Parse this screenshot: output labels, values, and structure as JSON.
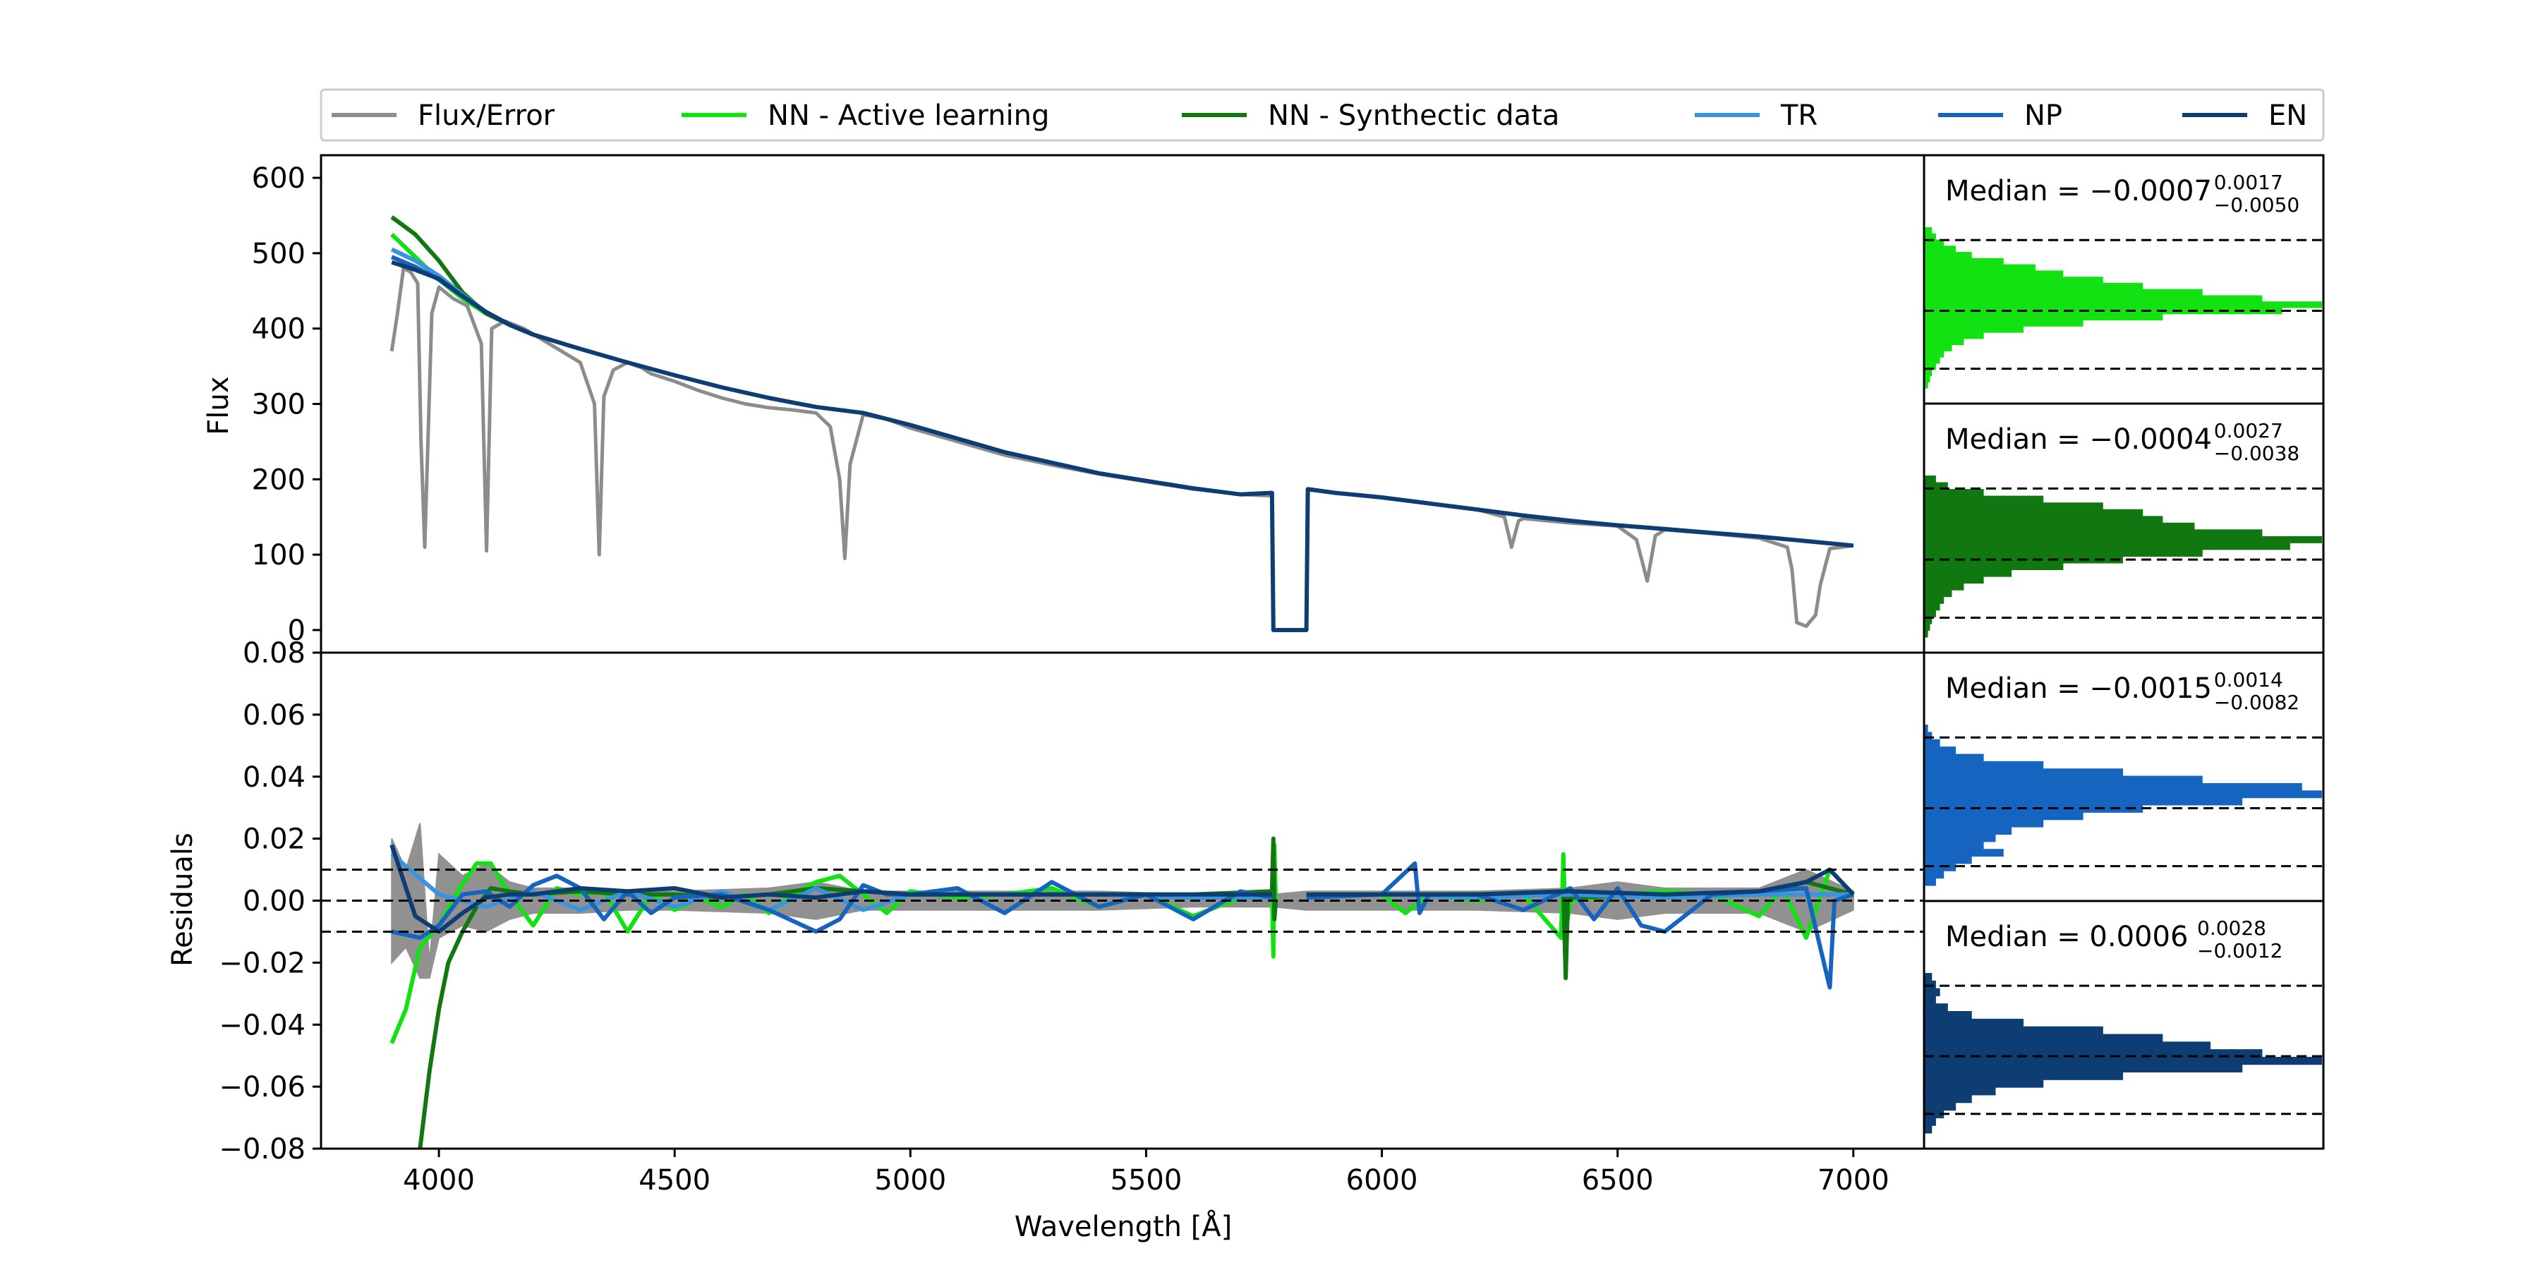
{
  "legend": [
    {
      "label": "Flux/Error",
      "color": "#8c8c8c"
    },
    {
      "label": "NN - Active learning",
      "color": "#12e112"
    },
    {
      "label": "NN - Synthectic data",
      "color": "#117811"
    },
    {
      "label": "TR",
      "color": "#3a93e0"
    },
    {
      "label": "NP",
      "color": "#1565c0"
    },
    {
      "label": "EN",
      "color": "#0d3d73"
    }
  ],
  "chart_data": [
    {
      "type": "line",
      "panel": "flux",
      "ylabel": "Flux",
      "xlim": [
        3750,
        7150
      ],
      "ylim": [
        -30,
        630
      ],
      "yticks": [
        0,
        100,
        200,
        300,
        400,
        500,
        600
      ],
      "series": [
        {
          "name": "Flux/Error",
          "color": "#8c8c8c",
          "x": [
            3900,
            3912,
            3925,
            3940,
            3955,
            3962,
            3970,
            3985,
            4000,
            4030,
            4060,
            4090,
            4101,
            4112,
            4140,
            4180,
            4220,
            4260,
            4300,
            4330,
            4340,
            4350,
            4370,
            4400,
            4430,
            4450,
            4500,
            4550,
            4600,
            4650,
            4700,
            4750,
            4800,
            4830,
            4850,
            4861,
            4872,
            4900,
            4950,
            5000,
            5100,
            5200,
            5300,
            5400,
            5500,
            5600,
            5700,
            5767,
            5770,
            5840,
            5843,
            5900,
            6000,
            6100,
            6200,
            6260,
            6275,
            6290,
            6300,
            6400,
            6500,
            6540,
            6563,
            6580,
            6600,
            6700,
            6800,
            6860,
            6870,
            6880,
            6900,
            6920,
            6930,
            6950,
            7000
          ],
          "y": [
            370,
            420,
            480,
            475,
            460,
            250,
            110,
            420,
            455,
            440,
            430,
            380,
            105,
            400,
            410,
            400,
            385,
            370,
            355,
            300,
            100,
            310,
            345,
            355,
            348,
            340,
            330,
            318,
            308,
            300,
            295,
            292,
            288,
            270,
            200,
            95,
            220,
            286,
            280,
            268,
            250,
            232,
            219,
            207,
            197,
            187,
            180,
            178,
            null,
            null,
            186,
            182,
            176,
            168,
            160,
            150,
            110,
            145,
            148,
            142,
            138,
            120,
            65,
            125,
            133,
            128,
            122,
            110,
            80,
            10,
            5,
            20,
            60,
            108,
            112
          ]
        },
        {
          "name": "NN - Active learning",
          "color": "#12e112",
          "x": [
            3900,
            3950,
            4000,
            4050,
            4100,
            4150,
            4200
          ],
          "y": [
            525,
            495,
            465,
            440,
            420,
            405,
            392
          ]
        },
        {
          "name": "NN - Synthectic data",
          "color": "#117811",
          "x": [
            3900,
            3950,
            4000,
            4050,
            4100,
            4150,
            4200
          ],
          "y": [
            548,
            525,
            490,
            448,
            420,
            405,
            392
          ]
        },
        {
          "name": "TR",
          "color": "#3a93e0",
          "x": [
            3900,
            3950,
            4000,
            4050,
            4100,
            4150,
            4200
          ],
          "y": [
            505,
            490,
            470,
            445,
            422,
            405,
            392
          ]
        },
        {
          "name": "NP",
          "color": "#1565c0",
          "x": [
            3900,
            3950,
            4000,
            4050,
            4100,
            4150,
            4200
          ],
          "y": [
            495,
            482,
            465,
            443,
            422,
            405,
            392
          ]
        },
        {
          "name": "EN",
          "color": "#0d3d73",
          "x": [
            3900,
            3950,
            4000,
            4050,
            4100,
            4150,
            4200,
            4300,
            4400,
            4500,
            4600,
            4700,
            4800,
            4900,
            5000,
            5100,
            5200,
            5300,
            5400,
            5500,
            5600,
            5700,
            5767,
            5770,
            5840,
            5843,
            5900,
            6000,
            6100,
            6200,
            6300,
            6400,
            6500,
            6600,
            6700,
            6800,
            6900,
            7000
          ],
          "y": [
            488,
            478,
            466,
            443,
            422,
            405,
            392,
            373,
            355,
            338,
            322,
            308,
            296,
            288,
            272,
            254,
            236,
            222,
            208,
            198,
            188,
            180,
            182,
            0,
            0,
            187,
            182,
            176,
            168,
            160,
            152,
            145,
            139,
            134,
            129,
            124,
            118,
            112
          ]
        }
      ]
    },
    {
      "type": "line",
      "panel": "residuals",
      "ylabel": "Residuals",
      "xlabel": "Wavelength [Å]",
      "xlim": [
        3750,
        7150
      ],
      "ylim": [
        -0.08,
        0.08
      ],
      "xticks": [
        4000,
        4500,
        5000,
        5500,
        6000,
        6500,
        7000
      ],
      "yticks": [
        -0.08,
        -0.06,
        -0.04,
        -0.02,
        0.0,
        0.02,
        0.04,
        0.06,
        0.08
      ],
      "ytick_labels": [
        "−0.08",
        "−0.06",
        "−0.04",
        "−0.02",
        "0.00",
        "0.02",
        "0.04",
        "0.06",
        "0.08"
      ],
      "reference_lines": [
        -0.01,
        0.0,
        0.01
      ],
      "series": [
        {
          "name": "Flux/Error",
          "color": "#8c8c8c",
          "x": [
            3900,
            3930,
            3960,
            3980,
            4000,
            4050,
            4100,
            4150,
            4200,
            4300,
            4400,
            4500,
            4700,
            4800,
            4900,
            5000,
            5200,
            5400,
            5600,
            5770,
            5840,
            6000,
            6200,
            6400,
            6500,
            6600,
            6800,
            6900,
            7000
          ],
          "y": [
            0.02,
            0.01,
            0.025,
            -0.02,
            0.015,
            0.008,
            0.012,
            0.006,
            0.004,
            0.004,
            0.003,
            0.003,
            0.004,
            0.006,
            0.003,
            0.003,
            0.003,
            0.003,
            0.002,
            0.002,
            0.003,
            0.003,
            0.003,
            0.004,
            0.006,
            0.004,
            0.004,
            0.01,
            0.003
          ],
          "y_lower": [
            -0.02,
            -0.015,
            -0.025,
            -0.025,
            -0.012,
            -0.008,
            -0.01,
            -0.006,
            -0.004,
            -0.004,
            -0.003,
            -0.003,
            -0.004,
            -0.006,
            -0.003,
            -0.003,
            -0.003,
            -0.003,
            -0.002,
            -0.002,
            -0.003,
            -0.003,
            -0.003,
            -0.004,
            -0.006,
            -0.004,
            -0.004,
            -0.01,
            -0.003
          ]
        },
        {
          "name": "NN - Active learning",
          "color": "#12e112",
          "x": [
            3900,
            3930,
            3960,
            4000,
            4040,
            4080,
            4110,
            4150,
            4200,
            4250,
            4300,
            4350,
            4400,
            4450,
            4500,
            4550,
            4600,
            4650,
            4700,
            4750,
            4800,
            4850,
            4900,
            4950,
            5000,
            5100,
            5200,
            5300,
            5400,
            5500,
            5600,
            5700,
            5767,
            5770,
            5772,
            5775,
            5840,
            5900,
            6000,
            6050,
            6100,
            6200,
            6300,
            6380,
            6385,
            6390,
            6400,
            6500,
            6600,
            6700,
            6800,
            6850,
            6900,
            6950,
            7000
          ],
          "y": [
            -0.046,
            -0.035,
            -0.015,
            -0.008,
            0.003,
            0.012,
            0.012,
            0.002,
            -0.008,
            0.004,
            0.002,
            0.003,
            -0.01,
            0.002,
            -0.003,
            0.001,
            -0.002,
            0.002,
            -0.004,
            0.002,
            0.006,
            0.008,
            0.002,
            -0.004,
            0.003,
            0.001,
            0.002,
            0.004,
            -0.002,
            0.002,
            -0.005,
            0.001,
            0.002,
            -0.018,
            0.018,
            0.0,
            null,
            0.002,
            0.002,
            -0.004,
            0.002,
            0.0,
            0.002,
            -0.012,
            0.015,
            -0.01,
            0.0,
            0.002,
            0.003,
            0.002,
            -0.005,
            0.004,
            -0.012,
            0.01,
            0.002
          ]
        },
        {
          "name": "NN - Synthectic data",
          "color": "#117811",
          "x": [
            3960,
            3980,
            4000,
            4020,
            4050,
            4080,
            4110,
            4150,
            4200,
            4300,
            4400,
            4500,
            4600,
            4700,
            4800,
            4900,
            5000,
            5200,
            5400,
            5600,
            5767,
            5770,
            5772,
            5775,
            5840,
            6000,
            6200,
            6385,
            6390,
            6395,
            6400,
            6600,
            6800,
            6900,
            7000
          ],
          "y": [
            -0.08,
            -0.055,
            -0.035,
            -0.02,
            -0.01,
            -0.002,
            0.004,
            0.003,
            0.002,
            0.003,
            0.002,
            0.002,
            0.001,
            0.002,
            0.004,
            0.003,
            0.002,
            0.002,
            0.002,
            0.002,
            0.003,
            0.02,
            -0.006,
            0.0,
            null,
            0.002,
            0.002,
            0.003,
            -0.025,
            0.003,
            0.001,
            0.002,
            0.002,
            0.006,
            0.002
          ]
        },
        {
          "name": "TR",
          "color": "#3a93e0",
          "x": [
            3900,
            4000,
            4100,
            4200,
            4300,
            4400,
            4500,
            4600,
            4700,
            4800,
            4900,
            5000,
            5200,
            5400,
            5600,
            5767,
            5770,
            5840,
            6000,
            6200,
            6400,
            6600,
            6800,
            7000
          ],
          "y": [
            0.015,
            0.002,
            -0.002,
            0.003,
            -0.003,
            0.003,
            -0.002,
            0.003,
            -0.003,
            0.004,
            -0.003,
            0.002,
            0.002,
            0.002,
            0.001,
            0.001,
            null,
            0.001,
            0.002,
            0.001,
            0.002,
            0.001,
            0.002,
            0.002
          ]
        },
        {
          "name": "NP",
          "color": "#1565c0",
          "x": [
            3900,
            3930,
            3960,
            4000,
            4050,
            4100,
            4150,
            4200,
            4250,
            4300,
            4350,
            4400,
            4450,
            4500,
            4600,
            4700,
            4800,
            4850,
            4900,
            4950,
            5000,
            5100,
            5200,
            5300,
            5400,
            5500,
            5600,
            5700,
            5767,
            5770,
            5840,
            6000,
            6070,
            6080,
            6100,
            6200,
            6300,
            6400,
            6450,
            6500,
            6550,
            6600,
            6650,
            6700,
            6800,
            6900,
            6950,
            6960,
            7000
          ],
          "y": [
            -0.01,
            -0.011,
            -0.012,
            -0.008,
            0.002,
            0.003,
            -0.002,
            0.005,
            0.008,
            0.004,
            -0.006,
            0.003,
            -0.004,
            0.001,
            0.002,
            -0.003,
            -0.01,
            -0.006,
            0.005,
            0.002,
            0.002,
            0.004,
            -0.004,
            0.006,
            -0.002,
            0.002,
            -0.006,
            0.003,
            0.001,
            null,
            0.001,
            0.002,
            0.012,
            -0.004,
            0.002,
            0.002,
            -0.003,
            0.004,
            -0.006,
            0.004,
            -0.008,
            -0.01,
            -0.004,
            0.002,
            0.003,
            0.004,
            -0.028,
            0.0,
            0.002
          ]
        },
        {
          "name": "EN",
          "color": "#0d3d73",
          "x": [
            3900,
            3950,
            4000,
            4050,
            4100,
            4150,
            4200,
            4300,
            4400,
            4500,
            4600,
            4700,
            4800,
            4900,
            5000,
            5200,
            5400,
            5600,
            5767,
            5770,
            5840,
            6000,
            6200,
            6400,
            6600,
            6800,
            6900,
            6950,
            7000
          ],
          "y": [
            0.018,
            -0.005,
            -0.01,
            -0.004,
            0.001,
            0.002,
            0.002,
            0.004,
            0.003,
            0.004,
            0.001,
            0.002,
            0.001,
            0.003,
            0.002,
            0.002,
            0.002,
            0.002,
            0.002,
            null,
            0.002,
            0.002,
            0.002,
            0.003,
            0.002,
            0.003,
            0.006,
            0.01,
            0.002
          ]
        }
      ]
    },
    {
      "type": "histogram",
      "panel": "hist-active-learning",
      "label_main": "Median = −0.0007",
      "label_sup": "0.0017",
      "label_sub": "−0.0050",
      "color": "#12e112",
      "bins_top_to_bottom": [
        0.02,
        0.03,
        0.05,
        0.08,
        0.12,
        0.2,
        0.28,
        0.35,
        0.45,
        0.55,
        0.7,
        0.85,
        1.0,
        0.9,
        0.6,
        0.4,
        0.25,
        0.15,
        0.1,
        0.07,
        0.05,
        0.04,
        0.03,
        0.02,
        0.015,
        0.01
      ]
    },
    {
      "type": "histogram",
      "panel": "hist-synthetic",
      "label_main": "Median = −0.0004",
      "label_sup": "0.0027",
      "label_sub": "−0.0038",
      "color": "#117811",
      "bins_top_to_bottom": [
        0.03,
        0.06,
        0.15,
        0.3,
        0.45,
        0.55,
        0.6,
        0.68,
        0.85,
        1.0,
        0.92,
        0.7,
        0.5,
        0.35,
        0.22,
        0.15,
        0.1,
        0.07,
        0.05,
        0.04,
        0.03,
        0.02,
        0.015,
        0.01
      ]
    },
    {
      "type": "histogram",
      "panel": "hist-np",
      "label_main": "Median = −0.0015",
      "label_sup": "0.0014",
      "label_sub": "−0.0082",
      "color": "#1565c0",
      "bins_top_to_bottom": [
        0.01,
        0.02,
        0.04,
        0.08,
        0.15,
        0.3,
        0.5,
        0.7,
        0.95,
        1.0,
        0.8,
        0.55,
        0.4,
        0.3,
        0.22,
        0.18,
        0.15,
        0.2,
        0.12,
        0.08,
        0.05,
        0.03
      ]
    },
    {
      "type": "histogram",
      "panel": "hist-en",
      "label_main": "Median = 0.0006",
      "label_sup": "0.0028",
      "label_sub": "−0.0012",
      "color": "#0d3d73",
      "bins_top_to_bottom": [
        0.02,
        0.03,
        0.04,
        0.03,
        0.06,
        0.12,
        0.25,
        0.45,
        0.6,
        0.72,
        0.85,
        1.0,
        0.8,
        0.5,
        0.3,
        0.18,
        0.12,
        0.08,
        0.05,
        0.03,
        0.02
      ]
    }
  ]
}
